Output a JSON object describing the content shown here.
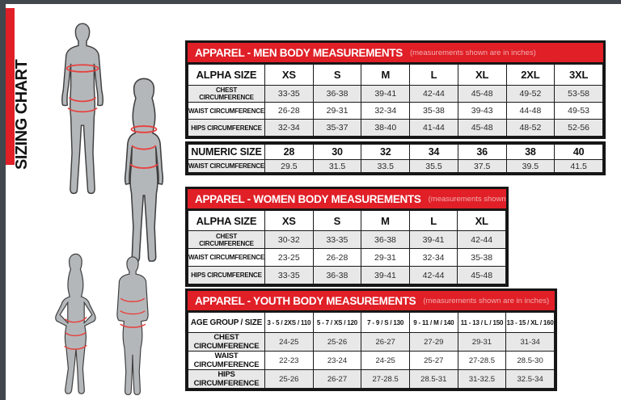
{
  "sidebar": {
    "vertical_title": "SIZING CHART"
  },
  "colors": {
    "red": "#e01f27",
    "frame": "#41474c",
    "shade": "#e8e8e9",
    "subtitle": "#f3adaf",
    "silhouette": "#b4b7ba",
    "line": "#e8403d"
  },
  "figures": {
    "man": "man-silhouette",
    "woman": "woman-silhouette",
    "girl": "girl-silhouette",
    "boy": "boy-silhouette",
    "measurement_lines": [
      "chest",
      "waist",
      "hips"
    ]
  },
  "tables": {
    "men": {
      "title": "APPAREL - MEN BODY MEASUREMENTS",
      "subtitle": "(measurements shown are in inches)",
      "header_label": "ALPHA SIZE",
      "columns": [
        "XS",
        "S",
        "M",
        "L",
        "XL",
        "2XL",
        "3XL"
      ],
      "rows": [
        {
          "label": "CHEST CIRCUMFERENCE",
          "values": [
            "33-35",
            "36-38",
            "39-41",
            "42-44",
            "45-48",
            "49-52",
            "53-58"
          ],
          "shaded": true
        },
        {
          "label": "WAIST CIRCUMFERENCE",
          "values": [
            "26-28",
            "29-31",
            "32-34",
            "35-38",
            "39-43",
            "44-48",
            "49-53"
          ],
          "shaded": false
        },
        {
          "label": "HIPS CIRCUMFERENCE",
          "values": [
            "32-34",
            "35-37",
            "38-40",
            "41-44",
            "45-48",
            "48-52",
            "52-56"
          ],
          "shaded": true
        }
      ]
    },
    "numeric": {
      "header_label": "NUMERIC SIZE",
      "columns": [
        "28",
        "30",
        "32",
        "34",
        "36",
        "38",
        "40"
      ],
      "rows": [
        {
          "label": "WAIST CIRCUMFERENCE",
          "values": [
            "29.5",
            "31.5",
            "33.5",
            "35.5",
            "37.5",
            "39.5",
            "41.5"
          ],
          "shaded": true
        }
      ]
    },
    "women": {
      "title": "APPAREL - WOMEN BODY MEASUREMENTS",
      "subtitle": "(measurements shown are in inches)",
      "header_label": "ALPHA SIZE",
      "columns": [
        "XS",
        "S",
        "M",
        "L",
        "XL"
      ],
      "rows": [
        {
          "label": "CHEST CIRCUMFERENCE",
          "values": [
            "30-32",
            "33-35",
            "36-38",
            "39-41",
            "42-44"
          ],
          "shaded": true
        },
        {
          "label": "WAIST CIRCUMFERENCE",
          "values": [
            "23-25",
            "26-28",
            "29-31",
            "32-34",
            "35-38"
          ],
          "shaded": false
        },
        {
          "label": "HIPS CIRCUMFERENCE",
          "values": [
            "33-35",
            "36-38",
            "39-41",
            "42-44",
            "45-48"
          ],
          "shaded": true
        }
      ]
    },
    "youth": {
      "title": "APPAREL - YOUTH BODY MEASUREMENTS",
      "subtitle": "(measurements shown are in inches)",
      "header_label": "AGE GROUP / SIZE",
      "columns": [
        "3 - 5 / 2XS / 110",
        "5 - 7 / XS / 120",
        "7 - 9 / S / 130",
        "9 - 11 / M / 140",
        "11 - 13 / L / 150",
        "13 - 15 / XL / 160"
      ],
      "rows": [
        {
          "label": "CHEST CIRCUMFERENCE",
          "values": [
            "24-25",
            "25-26",
            "26-27",
            "27-29",
            "29-31",
            "31-34"
          ],
          "shaded": true
        },
        {
          "label": "WAIST CIRCUMFERENCE",
          "values": [
            "22-23",
            "23-24",
            "24-25",
            "25-27",
            "27-28.5",
            "28.5-30"
          ],
          "shaded": false
        },
        {
          "label": "HIPS CIRCUMFERENCE",
          "values": [
            "25-26",
            "26-27",
            "27-28.5",
            "28.5-31",
            "31-32.5",
            "32.5-34"
          ],
          "shaded": true
        }
      ]
    }
  }
}
